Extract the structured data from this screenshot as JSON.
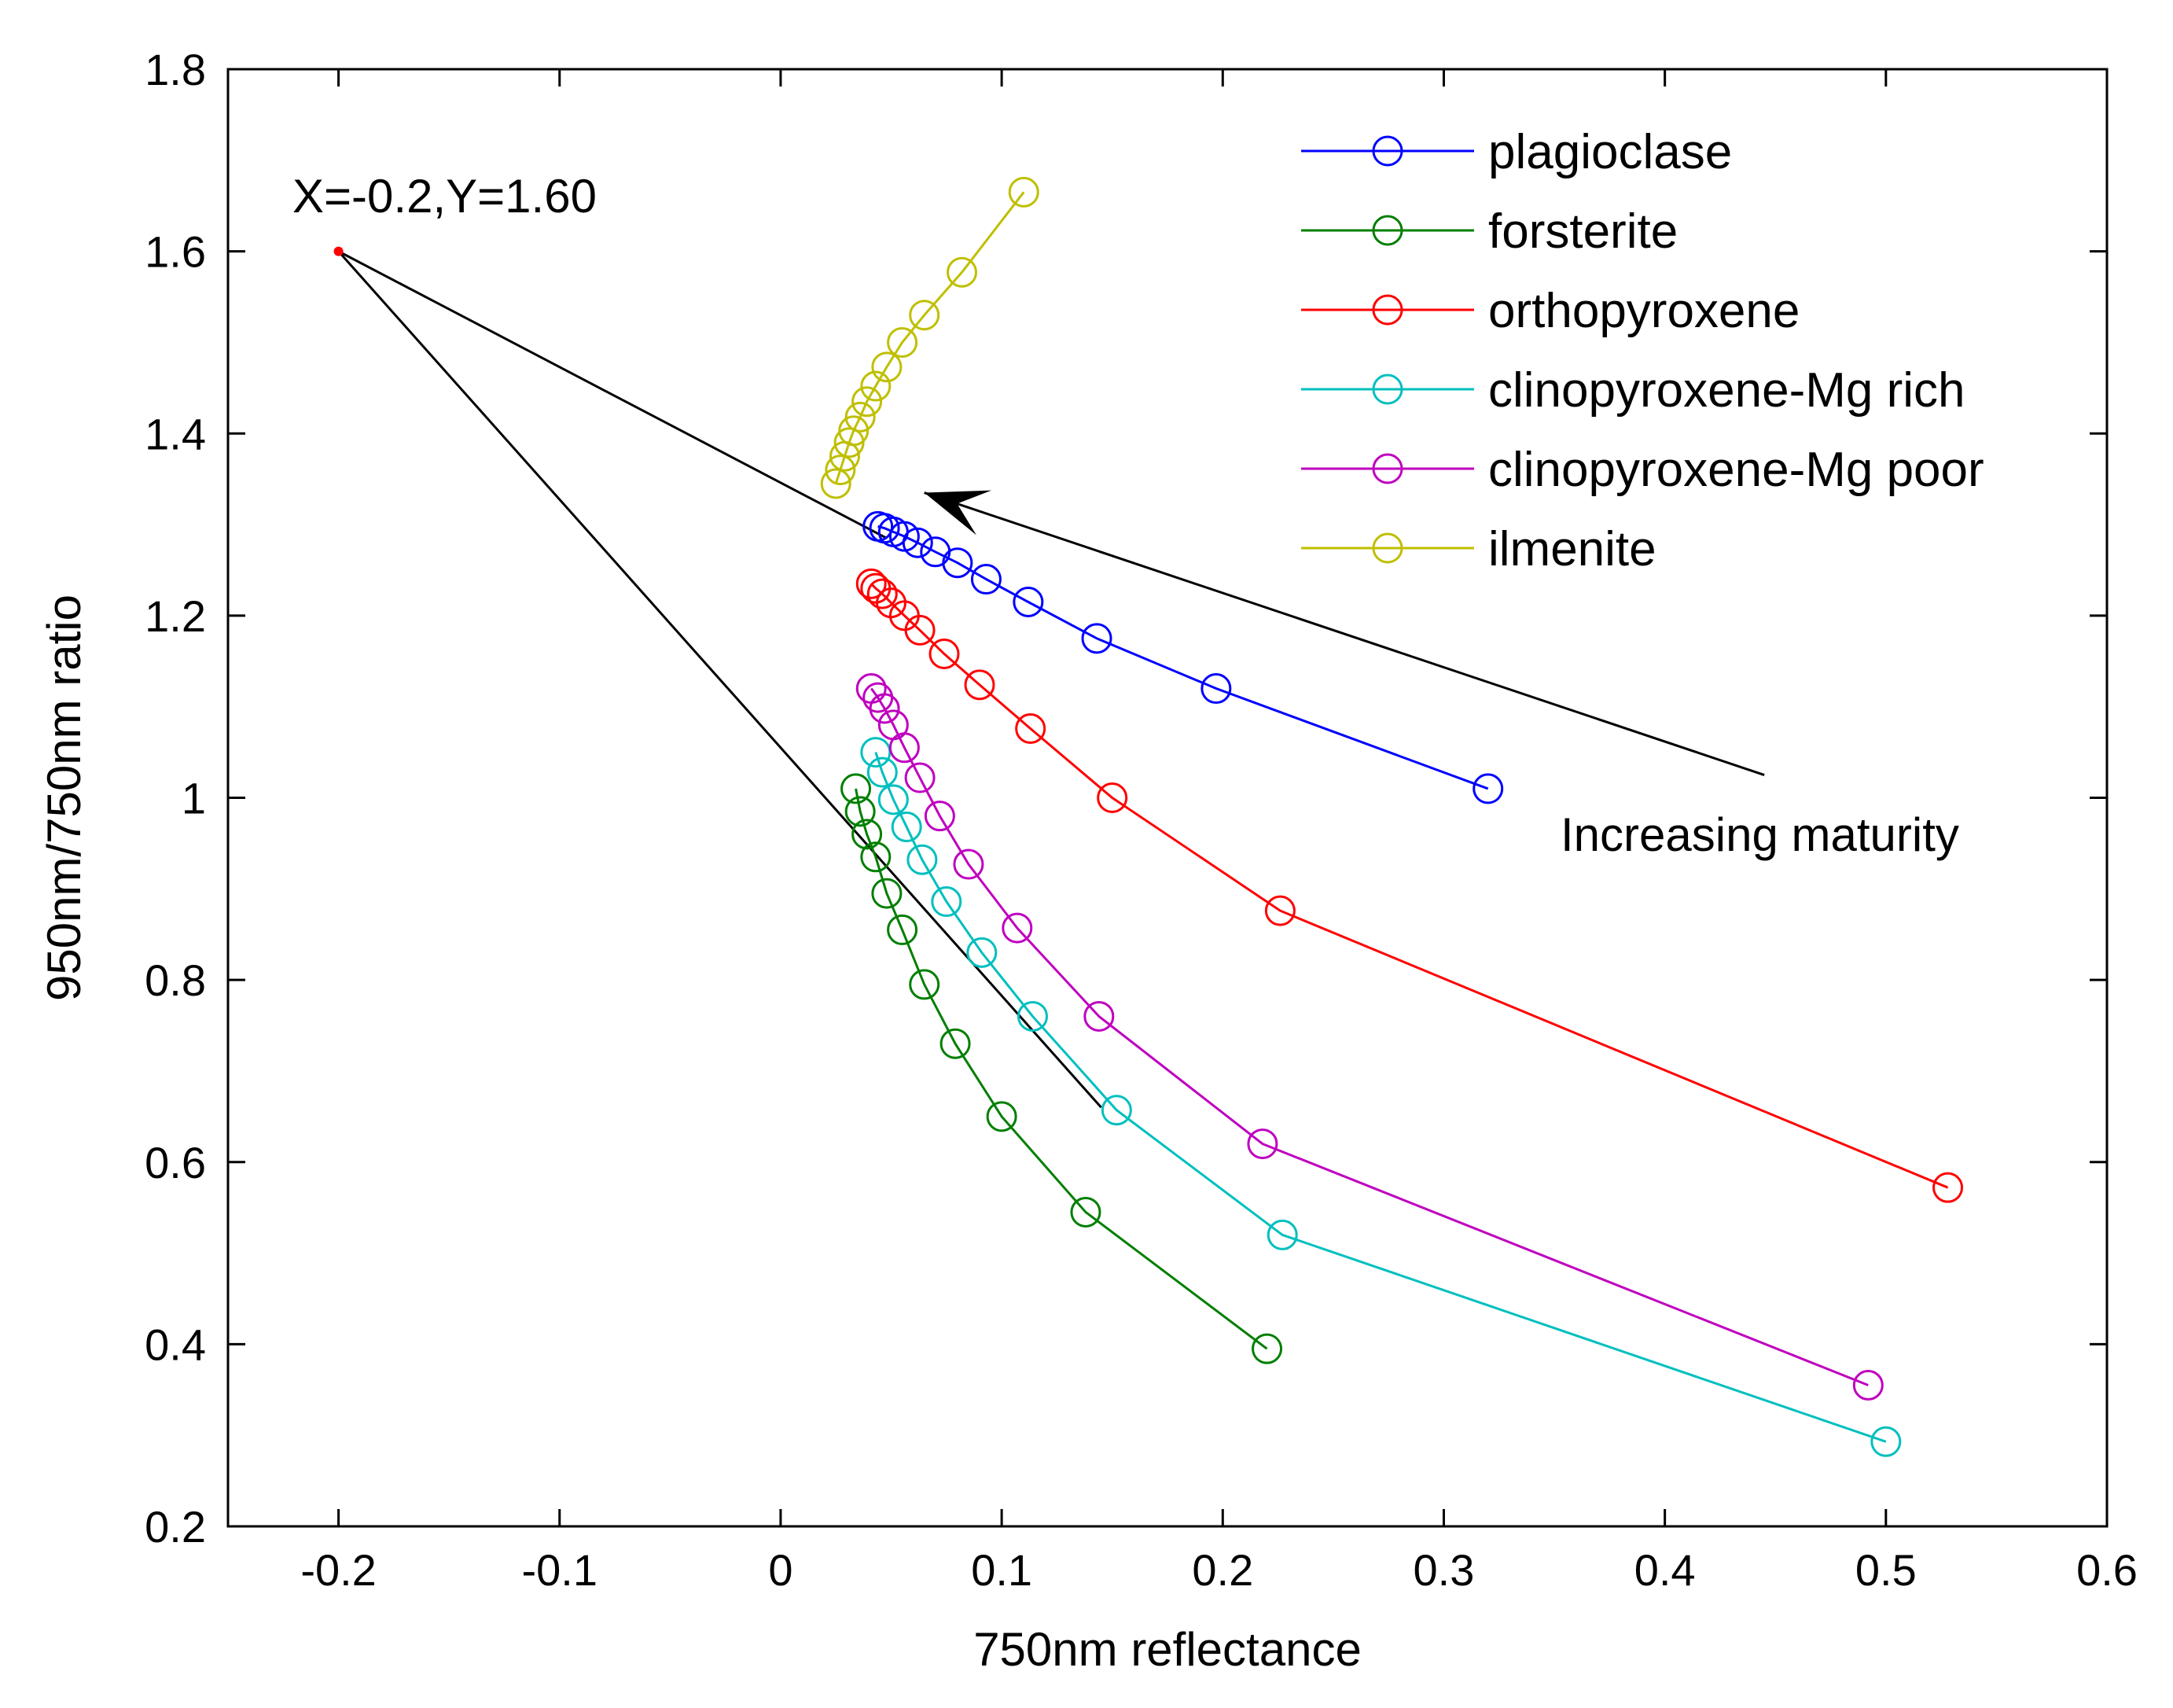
{
  "chart_data": {
    "type": "line",
    "xlabel": "750nm reflectance",
    "ylabel": "950nm/750nm ratio",
    "xlim": [
      -0.25,
      0.6
    ],
    "ylim": [
      0.2,
      1.8
    ],
    "xticks": [
      -0.2,
      -0.1,
      0,
      0.1,
      0.2,
      0.3,
      0.4,
      0.5,
      0.6
    ],
    "xtick_labels": [
      "-0.2",
      "-0.1",
      "0",
      "0.1",
      "0.2",
      "0.3",
      "0.4",
      "0.5",
      "0.6"
    ],
    "yticks": [
      0.2,
      0.4,
      0.6,
      0.8,
      1.0,
      1.2,
      1.4,
      1.6,
      1.8
    ],
    "ytick_labels": [
      "0.2",
      "0.4",
      "0.6",
      "0.8",
      "1",
      "1.2",
      "1.4",
      "1.6",
      "1.8"
    ],
    "grid": false,
    "legend_position": "top-right",
    "marker": "open-circle",
    "series": [
      {
        "name": "plagioclase",
        "color": "#0000ff",
        "x": [
          0.32,
          0.197,
          0.143,
          0.112,
          0.093,
          0.08,
          0.07,
          0.062,
          0.056,
          0.051,
          0.047,
          0.044
        ],
        "y": [
          1.01,
          1.12,
          1.175,
          1.215,
          1.24,
          1.258,
          1.27,
          1.28,
          1.287,
          1.292,
          1.296,
          1.298
        ]
      },
      {
        "name": "forsterite",
        "color": "#007f00",
        "x": [
          0.22,
          0.138,
          0.1,
          0.079,
          0.065,
          0.055,
          0.048,
          0.043,
          0.039,
          0.036,
          0.034
        ],
        "y": [
          0.395,
          0.545,
          0.65,
          0.73,
          0.795,
          0.855,
          0.895,
          0.935,
          0.96,
          0.985,
          1.01
        ]
      },
      {
        "name": "orthopyroxene",
        "color": "#ff0000",
        "x": [
          0.528,
          0.226,
          0.15,
          0.113,
          0.09,
          0.074,
          0.063,
          0.056,
          0.05,
          0.046,
          0.043,
          0.041
        ],
        "y": [
          0.572,
          0.876,
          1.0,
          1.076,
          1.124,
          1.158,
          1.184,
          1.2,
          1.214,
          1.224,
          1.23,
          1.235
        ]
      },
      {
        "name": "clinopyroxene-Mg rich",
        "color": "#00bfbf",
        "x": [
          0.5,
          0.227,
          0.152,
          0.114,
          0.091,
          0.075,
          0.064,
          0.057,
          0.051,
          0.046,
          0.043
        ],
        "y": [
          0.293,
          0.52,
          0.657,
          0.76,
          0.83,
          0.886,
          0.932,
          0.968,
          0.998,
          1.028,
          1.05
        ]
      },
      {
        "name": "clinopyroxene-Mg poor",
        "color": "#bf00bf",
        "x": [
          0.492,
          0.218,
          0.144,
          0.107,
          0.085,
          0.072,
          0.063,
          0.056,
          0.051,
          0.047,
          0.044,
          0.041
        ],
        "y": [
          0.355,
          0.62,
          0.76,
          0.857,
          0.927,
          0.98,
          1.022,
          1.055,
          1.08,
          1.098,
          1.11,
          1.12
        ]
      },
      {
        "name": "ilmenite",
        "color": "#bfbf00",
        "x": [
          0.11,
          0.082,
          0.065,
          0.055,
          0.048,
          0.043,
          0.039,
          0.036,
          0.033,
          0.031,
          0.029,
          0.027,
          0.025
        ],
        "y": [
          1.665,
          1.577,
          1.53,
          1.5,
          1.473,
          1.452,
          1.435,
          1.418,
          1.403,
          1.39,
          1.375,
          1.36,
          1.345
        ]
      }
    ],
    "annotations": {
      "point_label": "X=-0.2,Y=1.60",
      "origin_point": {
        "x": -0.2,
        "y": 1.6,
        "color": "#ff0000"
      },
      "arrow_label": "Increasing maturity",
      "arrow": {
        "x1": 0.445,
        "y1": 1.025,
        "x2": 0.065,
        "y2": 1.335
      },
      "ray_lines": [
        {
          "x1": -0.2,
          "y1": 1.6,
          "x2": 0.048,
          "y2": 1.285
        },
        {
          "x1": -0.2,
          "y1": 1.6,
          "x2": 0.145,
          "y2": 0.66
        }
      ]
    }
  }
}
